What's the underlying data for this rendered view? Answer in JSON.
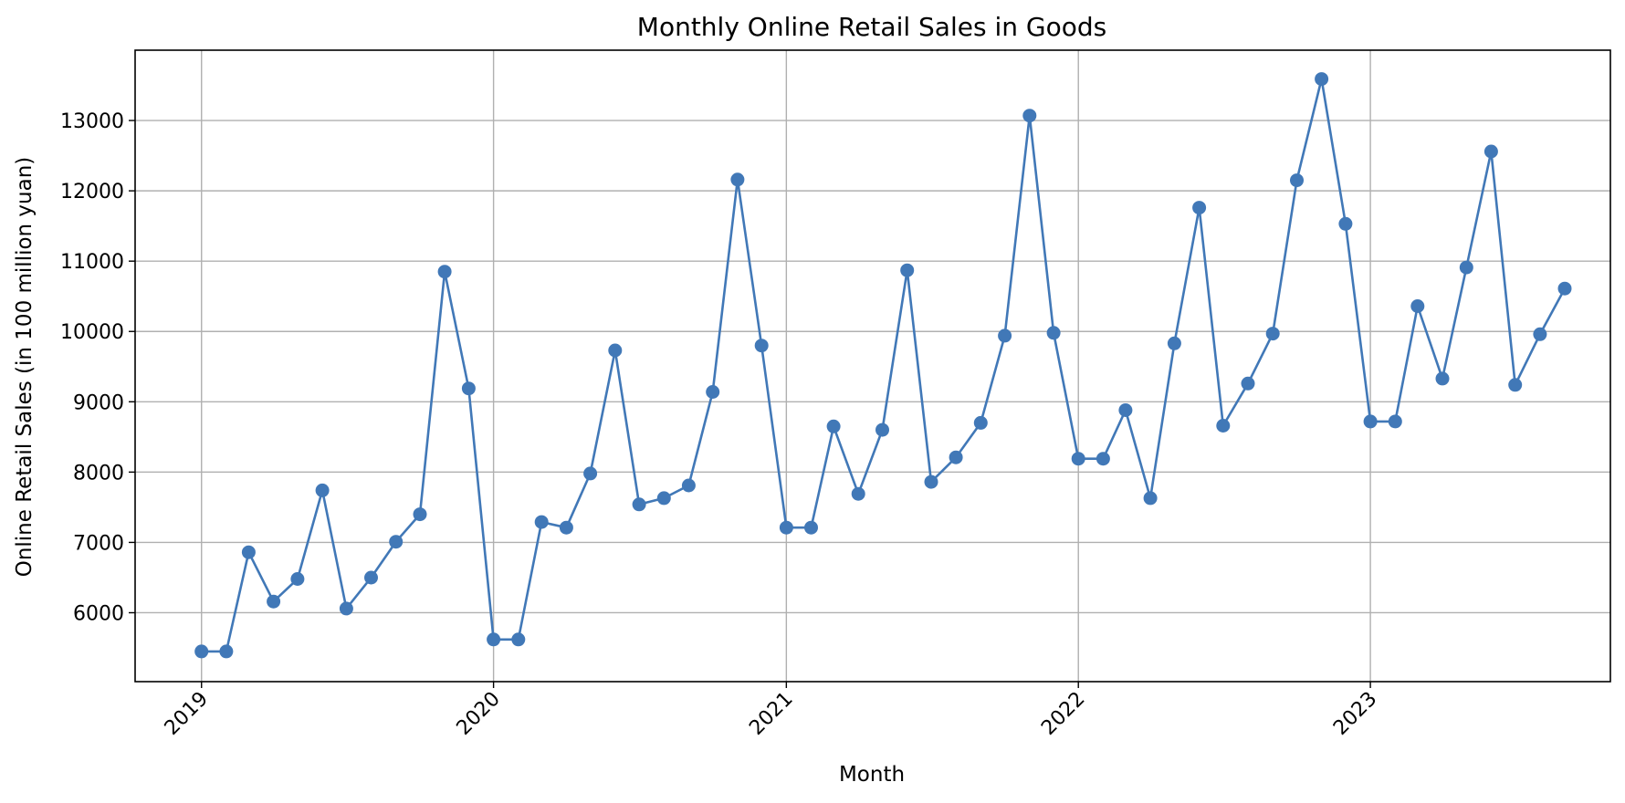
{
  "chart_data": {
    "type": "line",
    "title": "Monthly Online Retail Sales in Goods",
    "xlabel": "Month",
    "ylabel": "Online Retail Sales (in 100 million yuan)",
    "grid": true,
    "marker": "circle",
    "line_color": "#4178b7",
    "x_ticks": [
      "2019",
      "2020",
      "2021",
      "2022",
      "2023"
    ],
    "y_ticks": [
      6000,
      7000,
      8000,
      9000,
      10000,
      11000,
      12000,
      13000
    ],
    "xlim": [
      "2018-10-10",
      "2023-10-28"
    ],
    "ylim": [
      5020,
      14000
    ],
    "series": [
      {
        "name": "",
        "x": [
          "2019-01",
          "2019-02",
          "2019-03",
          "2019-04",
          "2019-05",
          "2019-06",
          "2019-07",
          "2019-08",
          "2019-09",
          "2019-10",
          "2019-11",
          "2019-12",
          "2020-01",
          "2020-02",
          "2020-03",
          "2020-04",
          "2020-05",
          "2020-06",
          "2020-07",
          "2020-08",
          "2020-09",
          "2020-10",
          "2020-11",
          "2020-12",
          "2021-01",
          "2021-02",
          "2021-03",
          "2021-04",
          "2021-05",
          "2021-06",
          "2021-07",
          "2021-08",
          "2021-09",
          "2021-10",
          "2021-11",
          "2021-12",
          "2022-01",
          "2022-02",
          "2022-03",
          "2022-04",
          "2022-05",
          "2022-06",
          "2022-07",
          "2022-08",
          "2022-09",
          "2022-10",
          "2022-11",
          "2022-12",
          "2023-01",
          "2023-02",
          "2023-03",
          "2023-04",
          "2023-05",
          "2023-06",
          "2023-07",
          "2023-08",
          "2023-09"
        ],
        "values": [
          5450,
          5450,
          6860,
          6160,
          6480,
          7740,
          6060,
          6500,
          7010,
          7400,
          10850,
          9190,
          5620,
          5620,
          7290,
          7210,
          7980,
          9730,
          7540,
          7630,
          7810,
          9140,
          12160,
          9800,
          7210,
          7210,
          8650,
          7690,
          8600,
          10870,
          7860,
          8210,
          8700,
          9940,
          13070,
          9980,
          8190,
          8190,
          8880,
          7630,
          9830,
          11760,
          8660,
          9260,
          9970,
          12150,
          13590,
          11530,
          8720,
          8720,
          10360,
          9330,
          10910,
          12560,
          9240,
          9960,
          10610
        ]
      }
    ]
  }
}
